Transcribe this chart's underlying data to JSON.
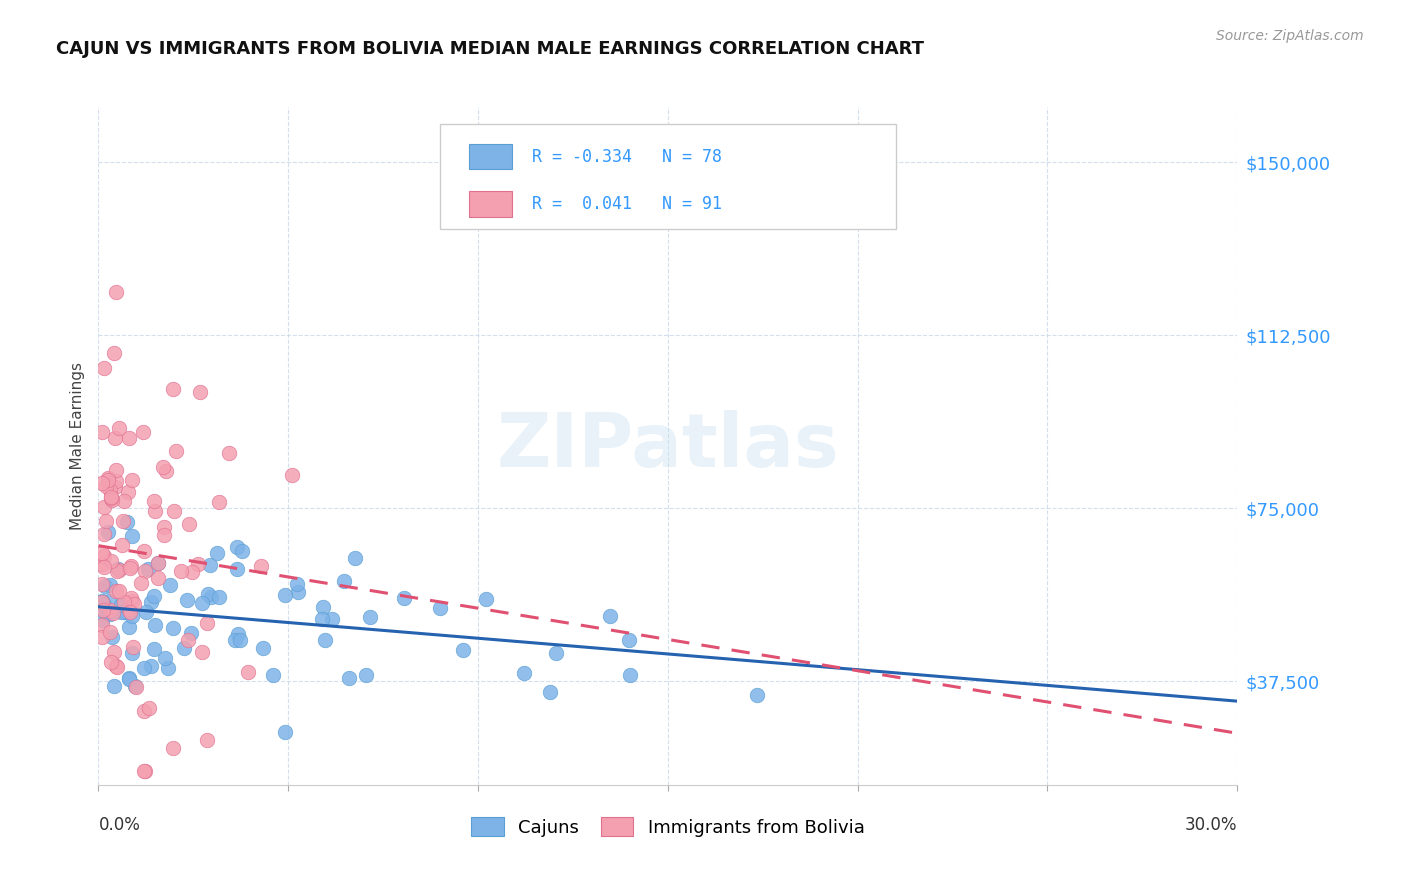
{
  "title": "CAJUN VS IMMIGRANTS FROM BOLIVIA MEDIAN MALE EARNINGS CORRELATION CHART",
  "source": "Source: ZipAtlas.com",
  "ylabel": "Median Male Earnings",
  "ytick_labels": [
    "$37,500",
    "$75,000",
    "$112,500",
    "$150,000"
  ],
  "ytick_values": [
    37500,
    75000,
    112500,
    150000
  ],
  "ymin": 15000,
  "ymax": 162000,
  "xmin": 0.0,
  "xmax": 0.3,
  "cajun_color": "#7eb3e8",
  "cajun_edge_color": "#5a9fd4",
  "bolivia_color": "#f4a0b0",
  "bolivia_edge_color": "#e07090",
  "cajun_line_color": "#2563b0",
  "bolivia_line_color": "#e05070",
  "cajun_R": -0.334,
  "cajun_N": 78,
  "bolivia_R": 0.041,
  "bolivia_N": 91,
  "watermark": "ZIPatlas",
  "legend_label_cajun": "Cajuns",
  "legend_label_bolivia": "Immigrants from Bolivia",
  "grid_color": "#c8d8e8",
  "text_color": "#3399ff",
  "title_color": "#111111",
  "source_color": "#999999"
}
